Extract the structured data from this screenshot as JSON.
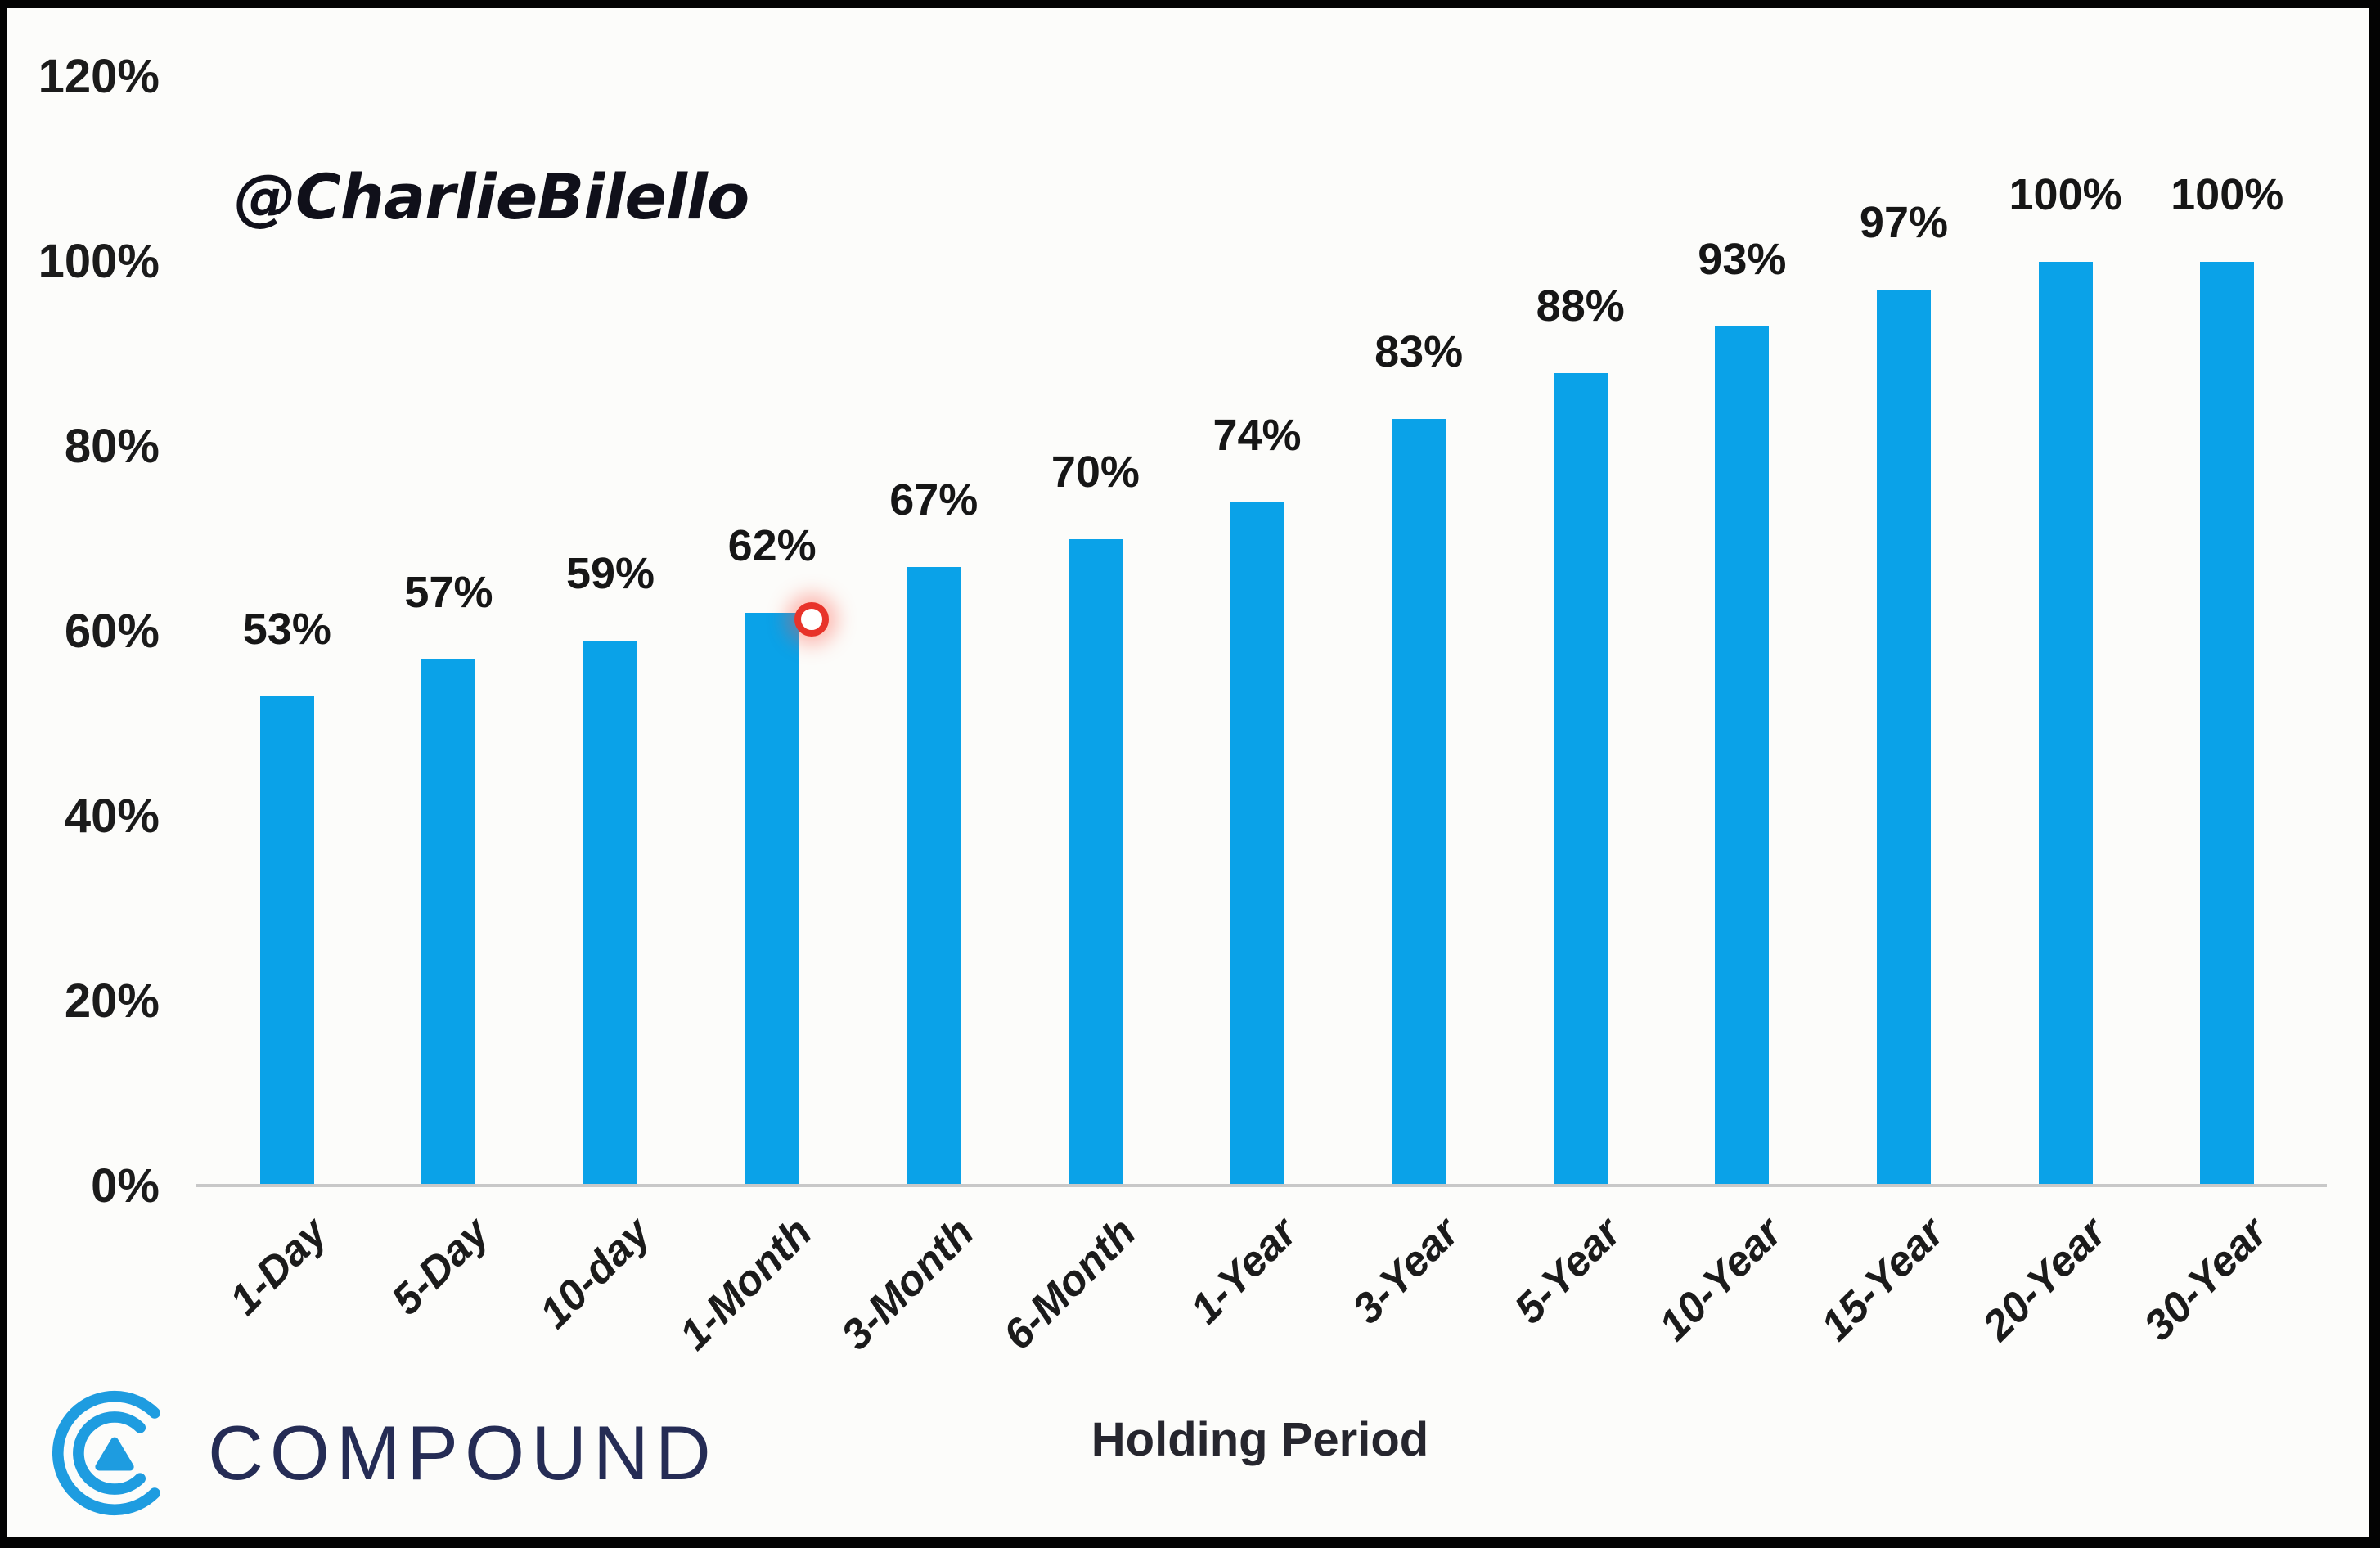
{
  "chart_data": {
    "type": "bar",
    "title": "",
    "categories": [
      "1-Day",
      "5-Day",
      "10-day",
      "1-Month",
      "3-Month",
      "6-Month",
      "1-Year",
      "3-Year",
      "5-Year",
      "10-Year",
      "15-Year",
      "20-Year",
      "30-Year"
    ],
    "values": [
      53,
      57,
      59,
      62,
      67,
      70,
      74,
      83,
      88,
      93,
      97,
      100,
      100
    ],
    "value_labels": [
      "53%",
      "57%",
      "59%",
      "62%",
      "67%",
      "70%",
      "74%",
      "83%",
      "88%",
      "93%",
      "97%",
      "100%",
      "100%"
    ],
    "xlabel": "Holding Period",
    "ylabel": "",
    "ylim": [
      0,
      120
    ],
    "ytick_values": [
      0,
      20,
      40,
      60,
      80,
      100,
      120
    ],
    "ytick_labels": [
      "0%",
      "20%",
      "40%",
      "60%",
      "80%",
      "100%",
      "120%"
    ],
    "grid": false,
    "legend": null,
    "bar_color": "#0AA2E8"
  },
  "watermark": "@CharlieBilello",
  "branding": {
    "logo_text": "COMPOUND",
    "logo_text_color": "#252C55",
    "logo_mark_color": "#1E9CE0"
  },
  "annotations": {
    "click_indicator_color": "#E8332A",
    "click_indicator_near": "1-Month"
  }
}
